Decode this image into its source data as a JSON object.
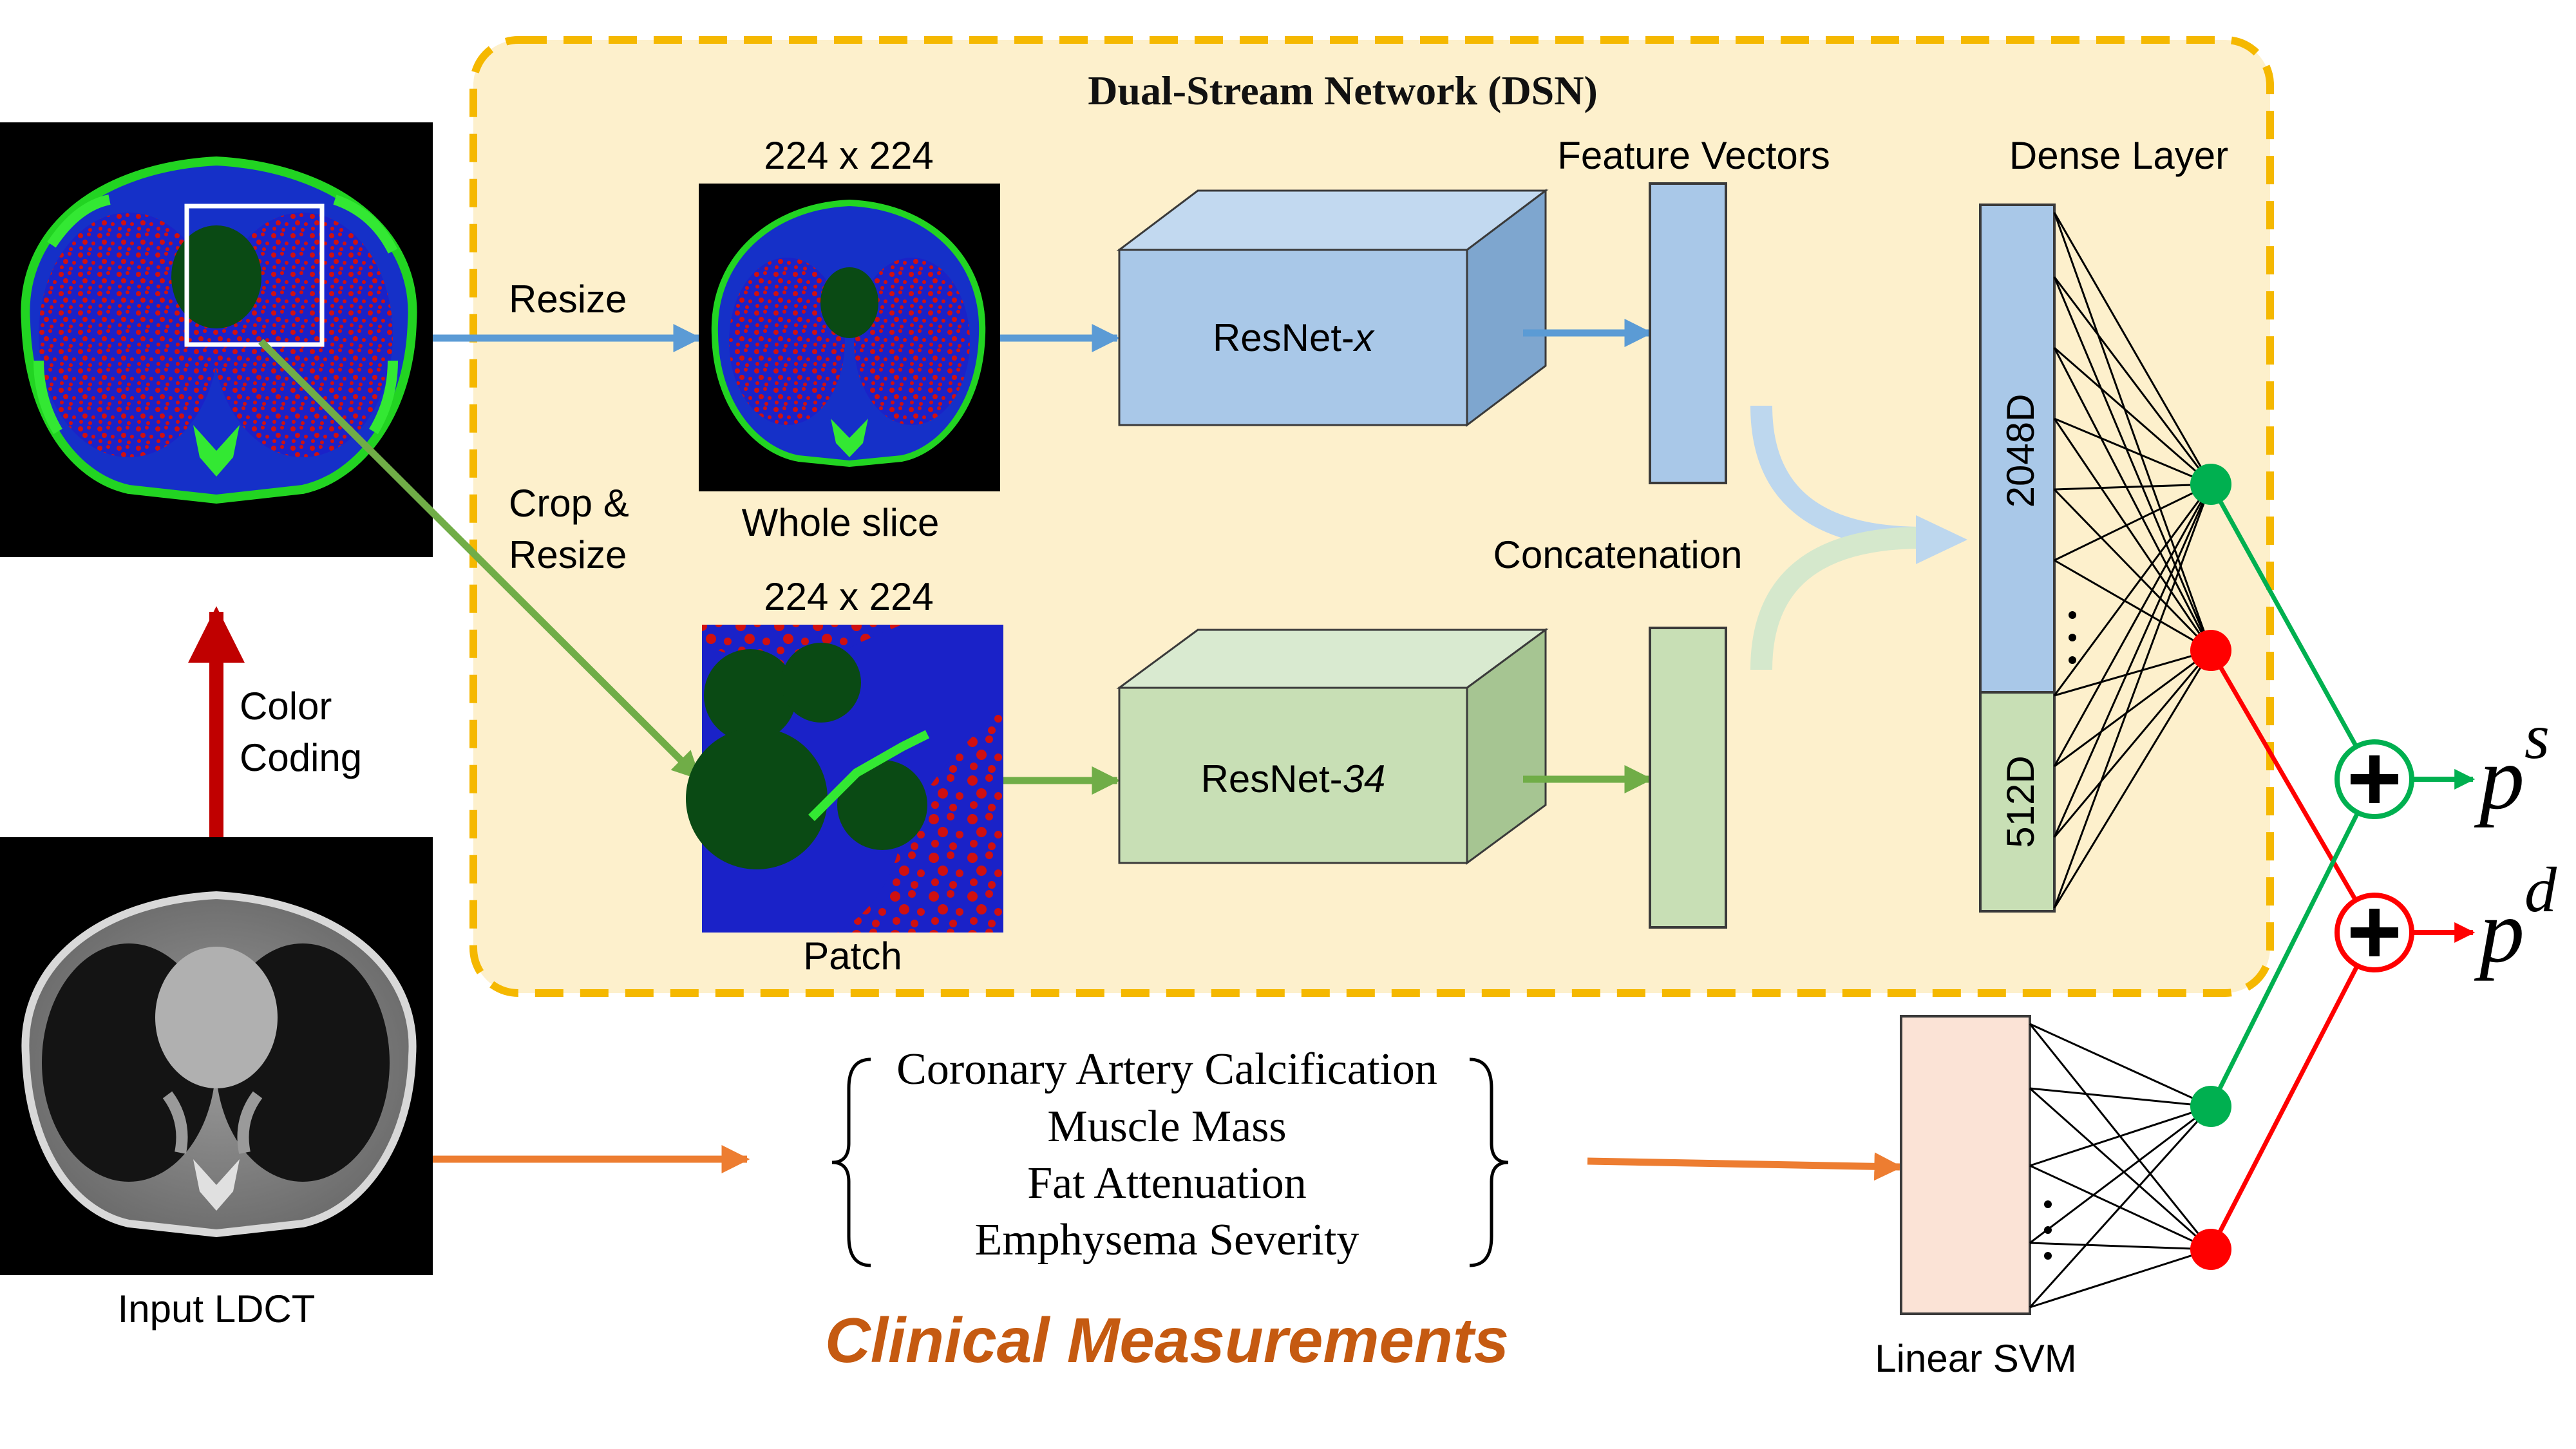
{
  "dsn": {
    "title": "Dual-Stream Network (DSN)"
  },
  "inputs": {
    "ldct_label": "Input LDCT",
    "color_coding_line1": "Color",
    "color_coding_line2": "Coding"
  },
  "stream_top": {
    "resize_label": "Resize",
    "size_label": "224 x 224",
    "image_label": "Whole slice",
    "network_prefix": "ResNet-",
    "network_suffix": "x"
  },
  "stream_bottom": {
    "crop_line1": "Crop &",
    "crop_line2": "Resize",
    "size_label": "224 x 224",
    "image_label": "Patch",
    "network_prefix": "ResNet-",
    "network_suffix": "34"
  },
  "features": {
    "vectors_label": "Feature Vectors",
    "concat_label": "Concatenation"
  },
  "dense": {
    "title": "Dense Layer",
    "top_dim": "2048D",
    "bottom_dim": "512D"
  },
  "clinical": {
    "items": [
      "Coronary Artery Calcification",
      "Muscle Mass",
      "Fat Attenuation",
      "Emphysema Severity"
    ],
    "title": "Clinical Measurements",
    "svm_label": "Linear SVM"
  },
  "outputs": {
    "p_s_base": "p",
    "p_s_sup": "s",
    "p_d_base": "p",
    "p_d_sup": "d"
  },
  "colors": {
    "dsn_bg": "#FDF0CC",
    "dsn_border": "#F5B800",
    "blue_box": "#A9C8E8",
    "green_box": "#C8DFB5",
    "arrow_blue": "#5B9BD5",
    "arrow_green": "#70AD47",
    "arrow_orange": "#ED7D31",
    "arrow_red": "#C00000",
    "node_green": "#00B050",
    "node_red": "#FF0000",
    "clinical_title": "#C55A11",
    "svm_fill": "#FBE3D6"
  }
}
